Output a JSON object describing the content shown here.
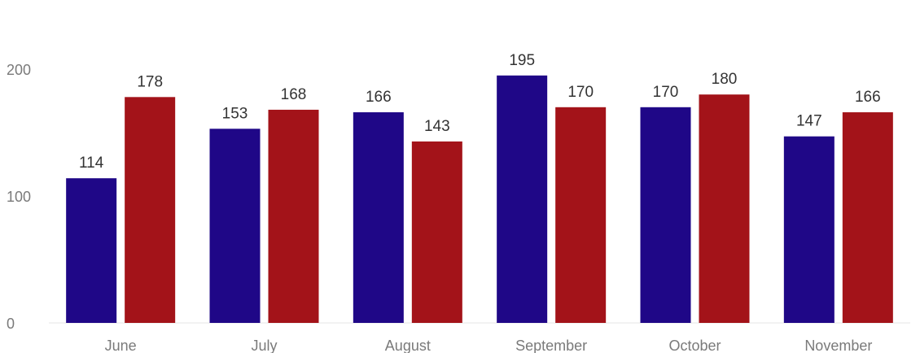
{
  "chart_data": {
    "type": "bar",
    "categories": [
      "June",
      "July",
      "August",
      "September",
      "October",
      "November"
    ],
    "series": [
      {
        "values": [
          114,
          153,
          166,
          195,
          170,
          147
        ],
        "color": "#1f0787"
      },
      {
        "values": [
          178,
          168,
          143,
          170,
          180,
          166
        ],
        "color": "#a31319"
      }
    ],
    "yticks": [
      0,
      100,
      200
    ],
    "ylim": [
      0,
      200
    ],
    "grid": false,
    "legend": "none"
  }
}
